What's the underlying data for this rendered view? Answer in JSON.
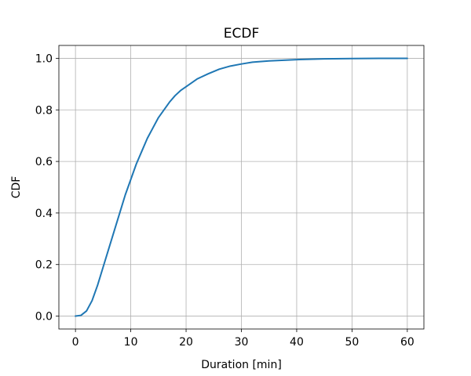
{
  "chart_data": {
    "type": "line",
    "title": "ECDF",
    "xlabel": "Duration [min]",
    "ylabel": "CDF",
    "xlim": [
      -3,
      63
    ],
    "ylim": [
      -0.05,
      1.05
    ],
    "xticks": [
      0,
      10,
      20,
      30,
      40,
      50,
      60
    ],
    "yticks": [
      0.0,
      0.2,
      0.4,
      0.6,
      0.8,
      1.0
    ],
    "xtick_labels": [
      "0",
      "10",
      "20",
      "30",
      "40",
      "50",
      "60"
    ],
    "ytick_labels": [
      "0.0",
      "0.2",
      "0.4",
      "0.6",
      "0.8",
      "1.0"
    ],
    "grid": true,
    "colors": {
      "line": "#1f77b4"
    },
    "series": [
      {
        "x": [
          0,
          1,
          2,
          3,
          4,
          5,
          6,
          7,
          8,
          9,
          10,
          11,
          12,
          13,
          14,
          15,
          16,
          17,
          18,
          19,
          20,
          22,
          24,
          26,
          28,
          30,
          32,
          35,
          40,
          45,
          50,
          55,
          60
        ],
        "values": [
          0.0,
          0.003,
          0.02,
          0.06,
          0.12,
          0.19,
          0.26,
          0.33,
          0.4,
          0.47,
          0.53,
          0.59,
          0.64,
          0.69,
          0.73,
          0.77,
          0.8,
          0.83,
          0.855,
          0.875,
          0.89,
          0.92,
          0.94,
          0.958,
          0.97,
          0.978,
          0.985,
          0.99,
          0.995,
          0.998,
          0.999,
          1.0,
          1.0
        ]
      }
    ]
  }
}
